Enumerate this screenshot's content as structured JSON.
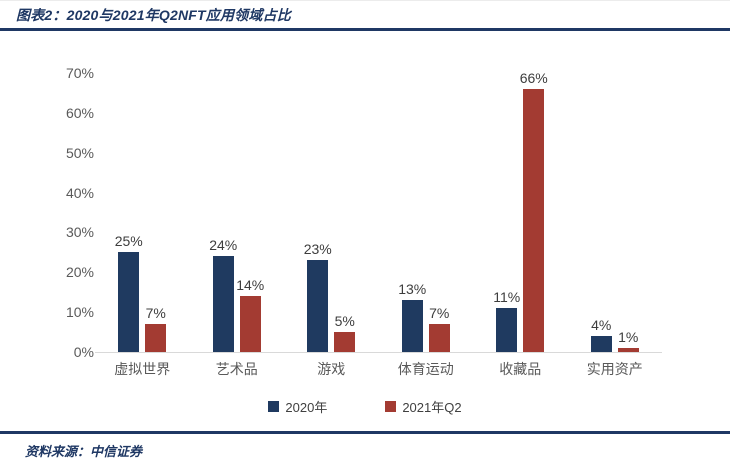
{
  "header": {
    "title": "图表2：2020与2021年Q2NFT应用领域占比"
  },
  "footer": {
    "source_label": "资料来源：中信证券"
  },
  "colors": {
    "accent_navy": "#1f3864",
    "bar_navy": "#1f3a60",
    "bar_red": "#a33b32",
    "axis_line": "#d9d9d9",
    "tick_text": "#595959"
  },
  "chart_data": {
    "type": "bar",
    "title": "2020与2021年Q2NFT应用领域占比",
    "categories": [
      "虚拟世界",
      "艺术品",
      "游戏",
      "体育运动",
      "收藏品",
      "实用资产"
    ],
    "series": [
      {
        "name": "2020年",
        "color": "#1f3a60",
        "values": [
          25,
          24,
          23,
          13,
          11,
          4
        ]
      },
      {
        "name": "2021年Q2",
        "color": "#a33b32",
        "values": [
          7,
          14,
          5,
          7,
          66,
          1
        ]
      }
    ],
    "value_suffix": "%",
    "ylabel": "",
    "xlabel": "",
    "ylim": [
      0,
      70
    ],
    "ytick_step": 10,
    "yticks": [
      "0%",
      "10%",
      "20%",
      "30%",
      "40%",
      "50%",
      "60%",
      "70%"
    ],
    "grid": false,
    "legend_position": "bottom"
  }
}
